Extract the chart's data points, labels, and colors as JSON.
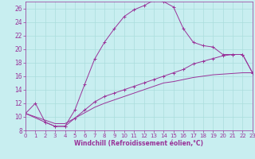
{
  "xlabel": "Windchill (Refroidissement éolien,°C)",
  "bg_color": "#c8eef0",
  "grid_color": "#aadddd",
  "line_color": "#993399",
  "xlim": [
    0,
    23
  ],
  "ylim": [
    8,
    27
  ],
  "xticks": [
    0,
    1,
    2,
    3,
    4,
    5,
    6,
    7,
    8,
    9,
    10,
    11,
    12,
    13,
    14,
    15,
    16,
    17,
    18,
    19,
    20,
    21,
    22,
    23
  ],
  "yticks": [
    8,
    10,
    12,
    14,
    16,
    18,
    20,
    22,
    24,
    26
  ],
  "curve1_x": [
    0,
    1,
    2,
    3,
    4,
    5,
    6,
    7,
    8,
    9,
    10,
    11,
    12,
    13,
    14,
    15,
    16,
    17,
    18,
    19,
    20,
    21,
    22,
    23
  ],
  "curve1_y": [
    10.5,
    12.0,
    9.2,
    8.6,
    8.6,
    11.0,
    14.8,
    18.5,
    21.0,
    23.0,
    24.8,
    25.8,
    26.4,
    27.2,
    27.0,
    26.2,
    23.0,
    21.0,
    20.5,
    20.3,
    19.2,
    19.2,
    19.2,
    16.5
  ],
  "curve2_x": [
    0,
    2,
    3,
    4,
    5,
    6,
    7,
    8,
    9,
    10,
    11,
    12,
    13,
    14,
    15,
    16,
    17,
    18,
    19,
    20,
    21,
    22,
    23
  ],
  "curve2_y": [
    10.5,
    9.2,
    8.6,
    8.6,
    9.8,
    11.0,
    12.2,
    13.0,
    13.5,
    14.0,
    14.5,
    15.0,
    15.5,
    16.0,
    16.5,
    17.0,
    17.8,
    18.2,
    18.6,
    19.0,
    19.2,
    19.2,
    16.5
  ],
  "curve3_x": [
    0,
    2,
    3,
    4,
    5,
    6,
    7,
    8,
    9,
    10,
    11,
    12,
    13,
    14,
    15,
    16,
    17,
    18,
    19,
    20,
    21,
    22,
    23
  ],
  "curve3_y": [
    10.5,
    9.5,
    9.0,
    9.0,
    9.8,
    10.6,
    11.4,
    12.0,
    12.5,
    13.0,
    13.5,
    14.0,
    14.5,
    15.0,
    15.2,
    15.5,
    15.8,
    16.0,
    16.2,
    16.3,
    16.4,
    16.5,
    16.5
  ]
}
